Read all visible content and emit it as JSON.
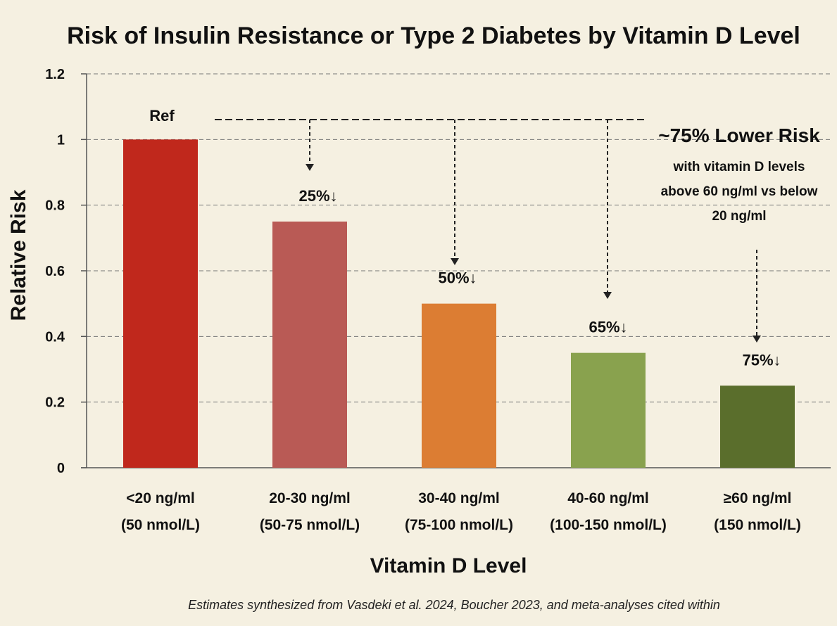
{
  "chart_data": {
    "type": "bar",
    "title": "Risk of Insulin Resistance or Type 2 Diabetes by Vitamin D Level",
    "xlabel": "Vitamin D Level",
    "ylabel": "Relative Risk",
    "ylim": [
      0,
      1.2
    ],
    "yticks": [
      0,
      0.2,
      0.4,
      0.6,
      0.8,
      1,
      1.2
    ],
    "ytick_labels": [
      "0",
      "0.2",
      "0.4",
      "0.6",
      "0.8",
      "1",
      "1.2"
    ],
    "grid": "horizontal dashed",
    "categories": [
      {
        "line1": "<20 ng/ml",
        "line2": "(50 nmol/L)"
      },
      {
        "line1": "20-30 ng/ml",
        "line2": "(50-75 nmol/L)"
      },
      {
        "line1": "30-40 ng/ml",
        "line2": "(75-100 nmol/L)"
      },
      {
        "line1": "40-60 ng/ml",
        "line2": "(100-150 nmol/L)"
      },
      {
        "line1": "≥60 ng/ml",
        "line2": "(150 nmol/L)"
      }
    ],
    "values": [
      1.0,
      0.75,
      0.5,
      0.35,
      0.25
    ],
    "bar_colors": [
      "#c0281c",
      "#b95a55",
      "#dc7d33",
      "#89a24e",
      "#5a6e2c"
    ],
    "data_labels": [
      "Ref",
      "25%↓",
      "50%↓",
      "65%↓",
      "75%↓"
    ],
    "annotation": {
      "headline": "~75% Lower Risk",
      "lines": [
        "with vitamin D levels",
        "above 60 ng/ml vs below",
        "20 ng/ml"
      ]
    },
    "footnote": "Estimates synthesized from Vasdeki et al. 2024, Boucher 2023, and meta-analyses cited within"
  }
}
